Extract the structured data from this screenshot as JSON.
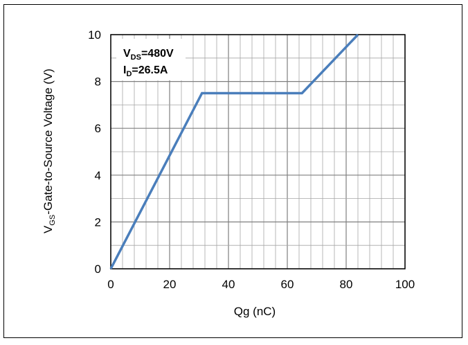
{
  "chart_data": {
    "type": "line",
    "xlabel": "Qg (nC)",
    "ylabel": {
      "main": "V",
      "sub": "GS",
      "rest": "-Gate-to-Source Voltage (V)"
    },
    "xlim": [
      0,
      100
    ],
    "ylim": [
      0,
      10
    ],
    "xticks": [
      0,
      20,
      40,
      60,
      80,
      100
    ],
    "yticks": [
      0,
      2,
      4,
      6,
      8,
      10
    ],
    "grid": true,
    "series": [
      {
        "color": "#4a7ebb",
        "points": [
          [
            0,
            0
          ],
          [
            31,
            7.5
          ],
          [
            65,
            7.5
          ],
          [
            84,
            10
          ]
        ]
      }
    ],
    "annotation": {
      "line1": {
        "main": "V",
        "sub": "DS",
        "rest": "=480V"
      },
      "line2": {
        "main": "I",
        "sub": "D",
        "rest": "=26.5A"
      }
    }
  }
}
